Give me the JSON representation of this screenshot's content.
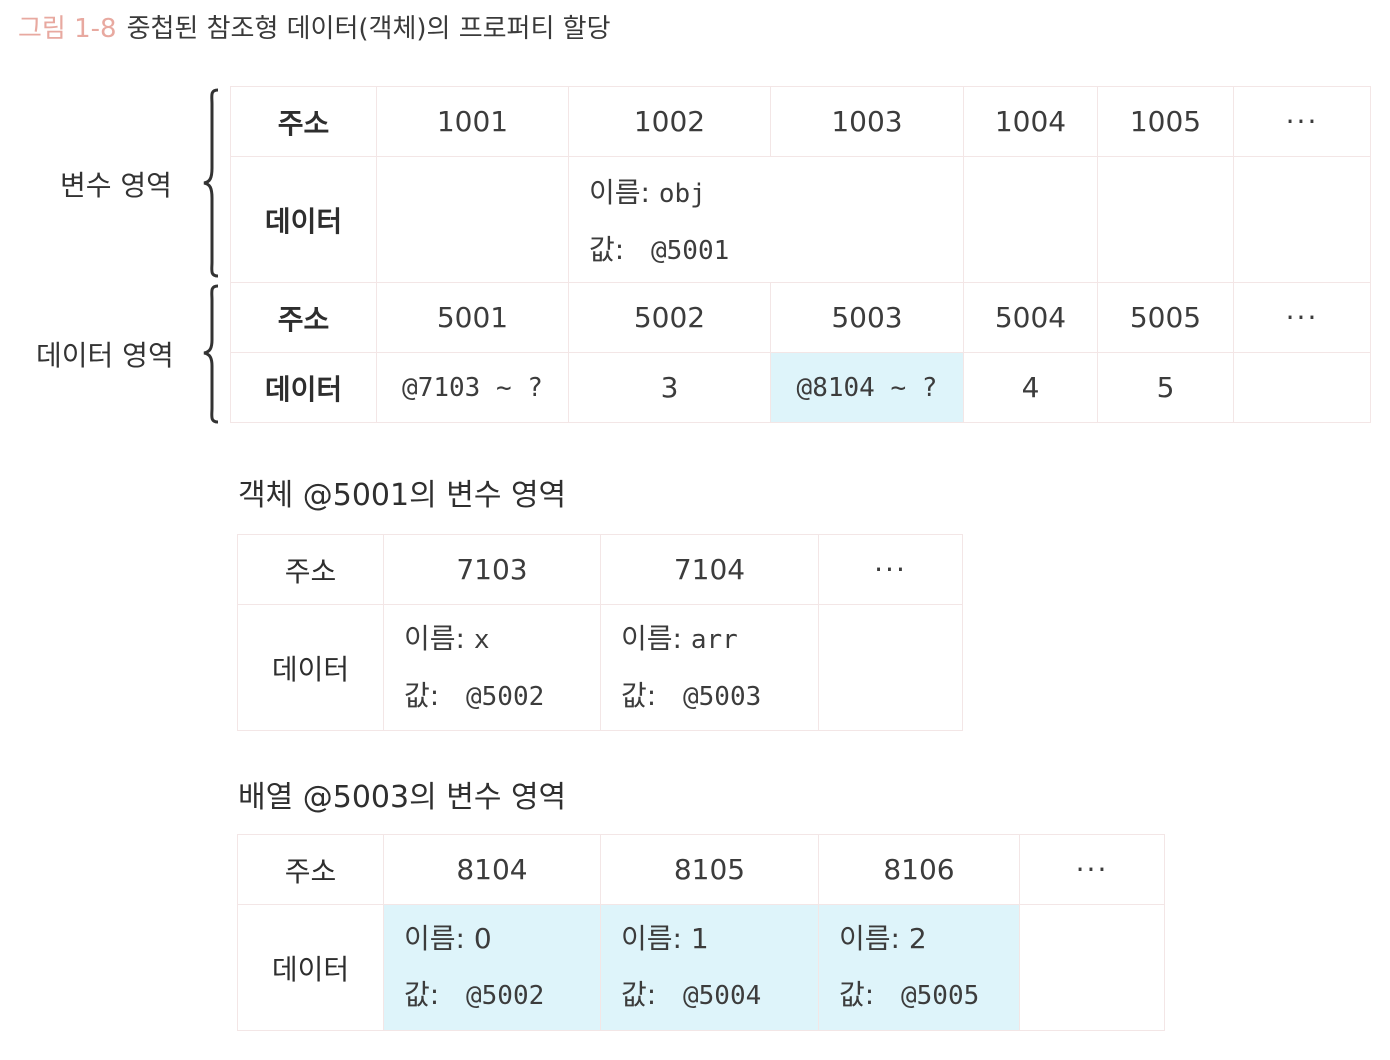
{
  "caption": {
    "figure_no": "그림 1-8",
    "title": "중첩된 참조형 데이터(객체)의 프로퍼티 할당"
  },
  "labels": {
    "variable_area": "변수 영역",
    "data_area": "데이터 영역",
    "address": "주소",
    "data": "데이터",
    "name_prefix": "이름:",
    "value_prefix": "값:",
    "ellipsis": "···"
  },
  "top_table": {
    "variable_addresses": [
      "1001",
      "1002",
      "1003",
      "1004",
      "1005"
    ],
    "variable_entry": {
      "name": "obj",
      "value": "@5001"
    },
    "data_addresses": [
      "5001",
      "5002",
      "5003",
      "5004",
      "5005"
    ],
    "data_values": [
      "@7103 ~ ?",
      "3",
      "@8104 ~ ?",
      "4",
      "5"
    ]
  },
  "object_table": {
    "title": "객체 @5001의 변수 영역",
    "addresses": [
      "7103",
      "7104"
    ],
    "entries": [
      {
        "name": "x",
        "value": "@5002"
      },
      {
        "name": "arr",
        "value": "@5003"
      }
    ]
  },
  "array_table": {
    "title": "배열 @5003의 변수 영역",
    "addresses": [
      "8104",
      "8105",
      "8106"
    ],
    "entries": [
      {
        "name": "0",
        "value": "@5002"
      },
      {
        "name": "1",
        "value": "@5004"
      },
      {
        "name": "2",
        "value": "@5005"
      }
    ]
  },
  "colors": {
    "caption_accent": "#e8a9a0",
    "highlight": "#def4fa",
    "grid": "#f3e6e6"
  }
}
